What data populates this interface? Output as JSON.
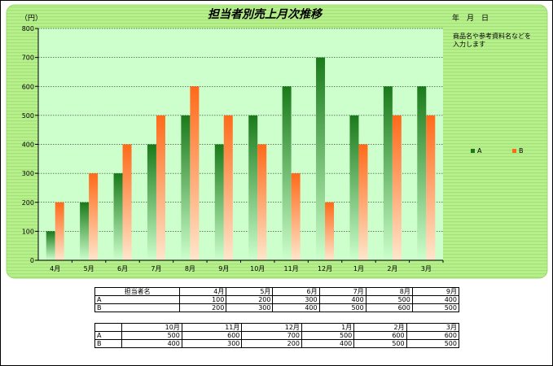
{
  "colors": {
    "panel_fill": "#b8f08e",
    "panel_stripe": "#a2e277",
    "plot_fill": "#ccffcc",
    "series_a": "#1a7a1a",
    "series_b": "#ff6a1a"
  },
  "chart_data": {
    "type": "bar",
    "title": "担当者別売上月次推移",
    "unit_label": "（円）",
    "date_label": "年　月　日",
    "note": "商品名や参考資料名などを入力します",
    "categories": [
      "4月",
      "5月",
      "6月",
      "7月",
      "8月",
      "9月",
      "10月",
      "11月",
      "12月",
      "1月",
      "2月",
      "3月"
    ],
    "series": [
      {
        "name": "A",
        "values": [
          100,
          200,
          300,
          400,
          500,
          400,
          500,
          600,
          700,
          500,
          600,
          600
        ]
      },
      {
        "name": "B",
        "values": [
          200,
          300,
          400,
          500,
          600,
          500,
          400,
          300,
          200,
          400,
          500,
          500
        ]
      }
    ],
    "ylim": [
      0,
      800
    ],
    "yticks": [
      0,
      100,
      200,
      300,
      400,
      500,
      600,
      700,
      800
    ],
    "grid": true,
    "legend_position": "right"
  },
  "table1": {
    "header": [
      "担当者名",
      "4月",
      "5月",
      "6月",
      "7月",
      "8月",
      "9月"
    ],
    "rows": [
      [
        "A",
        "100",
        "200",
        "300",
        "400",
        "500",
        "400"
      ],
      [
        "B",
        "200",
        "300",
        "400",
        "500",
        "600",
        "500"
      ]
    ]
  },
  "table2": {
    "header": [
      "",
      "10月",
      "11月",
      "12月",
      "1月",
      "2月",
      "3月"
    ],
    "rows": [
      [
        "A",
        "500",
        "600",
        "700",
        "500",
        "600",
        "600"
      ],
      [
        "B",
        "400",
        "300",
        "200",
        "400",
        "500",
        "500"
      ]
    ]
  }
}
